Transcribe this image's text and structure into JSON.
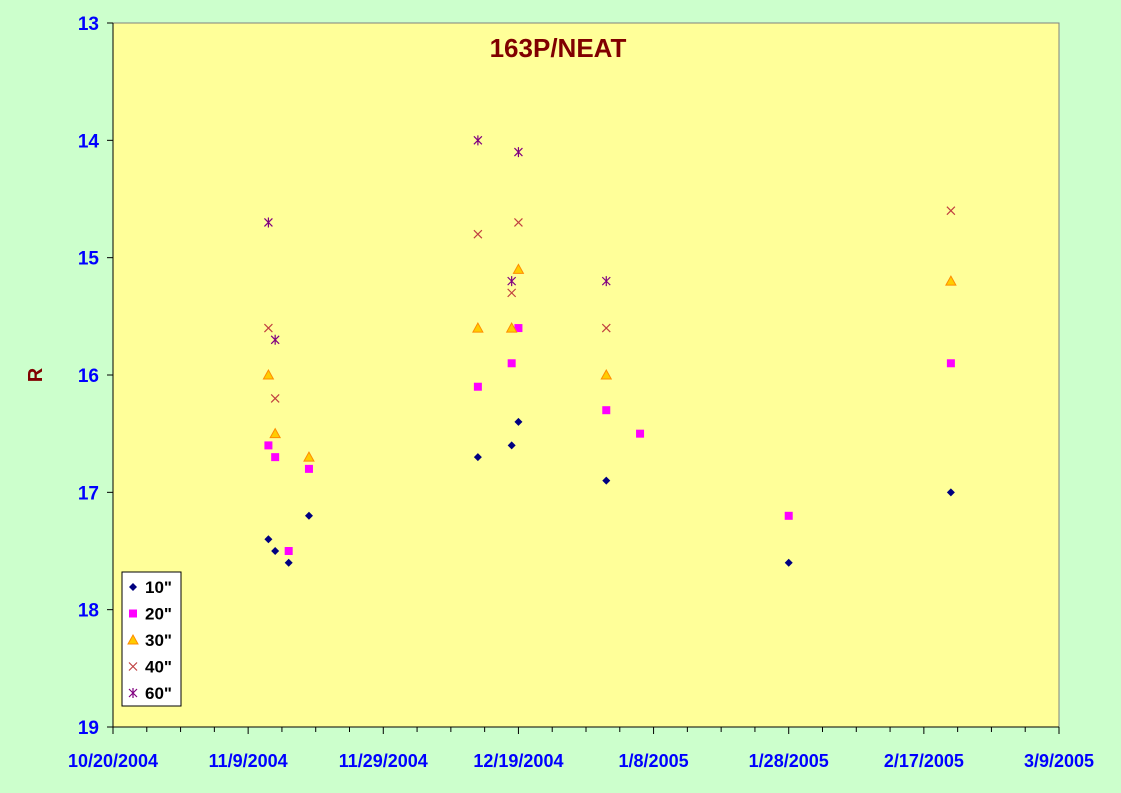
{
  "chart_data": {
    "type": "scatter",
    "title": "163P/NEAT",
    "xlabel": "",
    "ylabel": "R",
    "xlim": [
      "2004-10-20",
      "2005-03-09"
    ],
    "ylim": [
      13,
      19
    ],
    "y_reversed": true,
    "x_ticks": [
      "10/20/2004",
      "11/9/2004",
      "11/29/2004",
      "12/19/2004",
      "1/8/2005",
      "1/28/2005",
      "2/17/2005",
      "3/9/2005"
    ],
    "y_ticks": [
      "13",
      "14",
      "15",
      "16",
      "17",
      "18",
      "19"
    ],
    "grid": false,
    "legend_position": "bottom-left",
    "series": [
      {
        "name": "10\"",
        "marker": "diamond",
        "color": "#000080",
        "points": [
          [
            "2004-11-12",
            17.4
          ],
          [
            "2004-11-13",
            17.5
          ],
          [
            "2004-11-15",
            17.6
          ],
          [
            "2004-11-18",
            17.2
          ],
          [
            "2004-12-13",
            16.7
          ],
          [
            "2004-12-18",
            16.6
          ],
          [
            "2004-12-19",
            16.4
          ],
          [
            "2005-01-01",
            16.9
          ],
          [
            "2005-01-28",
            17.6
          ],
          [
            "2005-02-21",
            17.0
          ]
        ]
      },
      {
        "name": "20\"",
        "marker": "square",
        "color": "#ff00ff",
        "points": [
          [
            "2004-11-12",
            16.6
          ],
          [
            "2004-11-13",
            16.7
          ],
          [
            "2004-11-15",
            17.5
          ],
          [
            "2004-11-18",
            16.8
          ],
          [
            "2004-12-13",
            16.1
          ],
          [
            "2004-12-18",
            15.9
          ],
          [
            "2004-12-19",
            15.6
          ],
          [
            "2005-01-01",
            16.3
          ],
          [
            "2005-01-06",
            16.5
          ],
          [
            "2005-01-28",
            17.2
          ],
          [
            "2005-02-21",
            15.9
          ]
        ]
      },
      {
        "name": "30\"",
        "marker": "triangle",
        "color": "#ff8c00",
        "points": [
          [
            "2004-11-12",
            16.0
          ],
          [
            "2004-11-13",
            16.5
          ],
          [
            "2004-11-18",
            16.7
          ],
          [
            "2004-12-13",
            15.6
          ],
          [
            "2004-12-18",
            15.6
          ],
          [
            "2004-12-19",
            15.1
          ],
          [
            "2005-01-01",
            16.0
          ],
          [
            "2005-02-21",
            15.2
          ]
        ]
      },
      {
        "name": "40\"",
        "marker": "x",
        "color": "#c04040",
        "points": [
          [
            "2004-11-12",
            15.6
          ],
          [
            "2004-11-13",
            16.2
          ],
          [
            "2004-12-13",
            14.8
          ],
          [
            "2004-12-18",
            15.3
          ],
          [
            "2004-12-19",
            14.7
          ],
          [
            "2005-01-01",
            15.6
          ],
          [
            "2005-02-21",
            14.6
          ]
        ]
      },
      {
        "name": "60\"",
        "marker": "star",
        "color": "#800080",
        "points": [
          [
            "2004-11-12",
            14.7
          ],
          [
            "2004-11-13",
            15.7
          ],
          [
            "2004-12-13",
            14.0
          ],
          [
            "2004-12-18",
            15.2
          ],
          [
            "2004-12-19",
            14.1
          ],
          [
            "2005-01-01",
            15.2
          ]
        ]
      }
    ]
  }
}
